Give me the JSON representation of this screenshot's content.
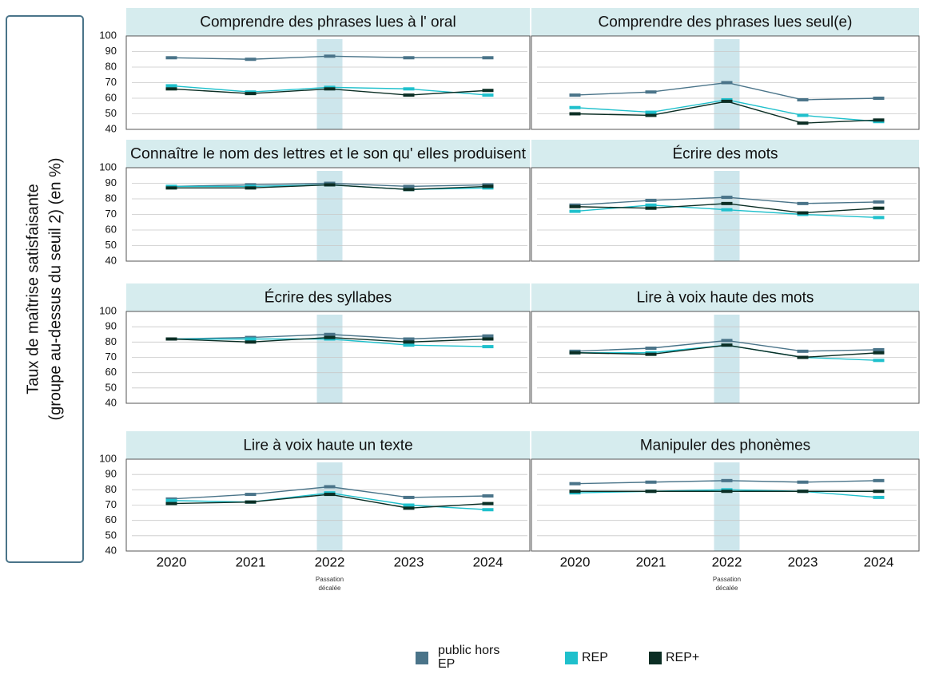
{
  "y_label": [
    "Taux de maîtrise satisfaisante",
    "(groupe au-dessus du seuil 2) (en %)"
  ],
  "categories": [
    "2020",
    "2021",
    "2022",
    "2023",
    "2024"
  ],
  "annotation": "Passation décalée",
  "chart_data": [
    {
      "type": "line",
      "title": "Comprendre des phrases lues à l' oral",
      "ylim": [
        40,
        100
      ],
      "yticks": [
        40,
        50,
        60,
        70,
        80,
        90,
        100
      ],
      "grid": true,
      "series": [
        {
          "name": "public hors EP",
          "color": "#4a7489",
          "values": [
            86,
            85,
            87,
            86,
            86
          ]
        },
        {
          "name": "REP",
          "color": "#1fc0cc",
          "values": [
            68,
            64,
            67,
            66,
            62
          ]
        },
        {
          "name": "REP+",
          "color": "#0b2e24",
          "values": [
            66,
            63,
            66,
            62,
            65
          ]
        }
      ]
    },
    {
      "type": "line",
      "title": "Comprendre des phrases lues seul(e)",
      "ylim": [
        40,
        100
      ],
      "yticks": [
        40,
        50,
        60,
        70,
        80,
        90,
        100
      ],
      "grid": true,
      "series": [
        {
          "name": "public hors EP",
          "color": "#4a7489",
          "values": [
            62,
            64,
            70,
            59,
            60
          ]
        },
        {
          "name": "REP",
          "color": "#1fc0cc",
          "values": [
            54,
            51,
            59,
            49,
            45
          ]
        },
        {
          "name": "REP+",
          "color": "#0b2e24",
          "values": [
            50,
            49,
            58,
            44,
            46
          ]
        }
      ]
    },
    {
      "type": "line",
      "title": "Connaître le nom des lettres et le son qu' elles produisent",
      "ylim": [
        40,
        100
      ],
      "yticks": [
        40,
        50,
        60,
        70,
        80,
        90,
        100
      ],
      "grid": true,
      "series": [
        {
          "name": "public hors EP",
          "color": "#4a7489",
          "values": [
            88,
            89,
            90,
            88,
            89
          ]
        },
        {
          "name": "REP",
          "color": "#1fc0cc",
          "values": [
            88,
            88,
            89,
            86,
            87
          ]
        },
        {
          "name": "REP+",
          "color": "#0b2e24",
          "values": [
            87,
            87,
            89,
            86,
            88
          ]
        }
      ]
    },
    {
      "type": "line",
      "title": "Écrire des mots",
      "ylim": [
        40,
        100
      ],
      "yticks": [
        40,
        50,
        60,
        70,
        80,
        90,
        100
      ],
      "grid": true,
      "series": [
        {
          "name": "public hors EP",
          "color": "#4a7489",
          "values": [
            76,
            79,
            81,
            77,
            78
          ]
        },
        {
          "name": "REP",
          "color": "#1fc0cc",
          "values": [
            72,
            76,
            73,
            70,
            68
          ]
        },
        {
          "name": "REP+",
          "color": "#0b2e24",
          "values": [
            75,
            74,
            77,
            71,
            74
          ]
        }
      ]
    },
    {
      "type": "line",
      "title": "Écrire des syllabes",
      "ylim": [
        40,
        100
      ],
      "yticks": [
        40,
        50,
        60,
        70,
        80,
        90,
        100
      ],
      "grid": true,
      "series": [
        {
          "name": "public hors EP",
          "color": "#4a7489",
          "values": [
            82,
            83,
            85,
            82,
            84
          ]
        },
        {
          "name": "REP",
          "color": "#1fc0cc",
          "values": [
            82,
            82,
            82,
            78,
            77
          ]
        },
        {
          "name": "REP+",
          "color": "#0b2e24",
          "values": [
            82,
            80,
            83,
            80,
            82
          ]
        }
      ]
    },
    {
      "type": "line",
      "title": "Lire à voix haute des mots",
      "ylim": [
        40,
        100
      ],
      "yticks": [
        40,
        50,
        60,
        70,
        80,
        90,
        100
      ],
      "grid": true,
      "series": [
        {
          "name": "public hors EP",
          "color": "#4a7489",
          "values": [
            74,
            76,
            81,
            74,
            75
          ]
        },
        {
          "name": "REP",
          "color": "#1fc0cc",
          "values": [
            73,
            73,
            78,
            70,
            68
          ]
        },
        {
          "name": "REP+",
          "color": "#0b2e24",
          "values": [
            73,
            72,
            78,
            70,
            73
          ]
        }
      ]
    },
    {
      "type": "line",
      "title": "Lire à voix haute un texte",
      "ylim": [
        40,
        100
      ],
      "yticks": [
        40,
        50,
        60,
        70,
        80,
        90,
        100
      ],
      "grid": true,
      "series": [
        {
          "name": "public hors EP",
          "color": "#4a7489",
          "values": [
            74,
            77,
            82,
            75,
            76
          ]
        },
        {
          "name": "REP",
          "color": "#1fc0cc",
          "values": [
            73,
            72,
            78,
            70,
            67
          ]
        },
        {
          "name": "REP+",
          "color": "#0b2e24",
          "values": [
            71,
            72,
            77,
            68,
            71
          ]
        }
      ]
    },
    {
      "type": "line",
      "title": "Manipuler des phonèmes",
      "ylim": [
        40,
        100
      ],
      "yticks": [
        40,
        50,
        60,
        70,
        80,
        90,
        100
      ],
      "grid": true,
      "series": [
        {
          "name": "public hors EP",
          "color": "#4a7489",
          "values": [
            84,
            85,
            86,
            85,
            86
          ]
        },
        {
          "name": "REP",
          "color": "#1fc0cc",
          "values": [
            78,
            79,
            80,
            79,
            75
          ]
        },
        {
          "name": "REP+",
          "color": "#0b2e24",
          "values": [
            79,
            79,
            79,
            79,
            79
          ]
        }
      ]
    }
  ]
}
